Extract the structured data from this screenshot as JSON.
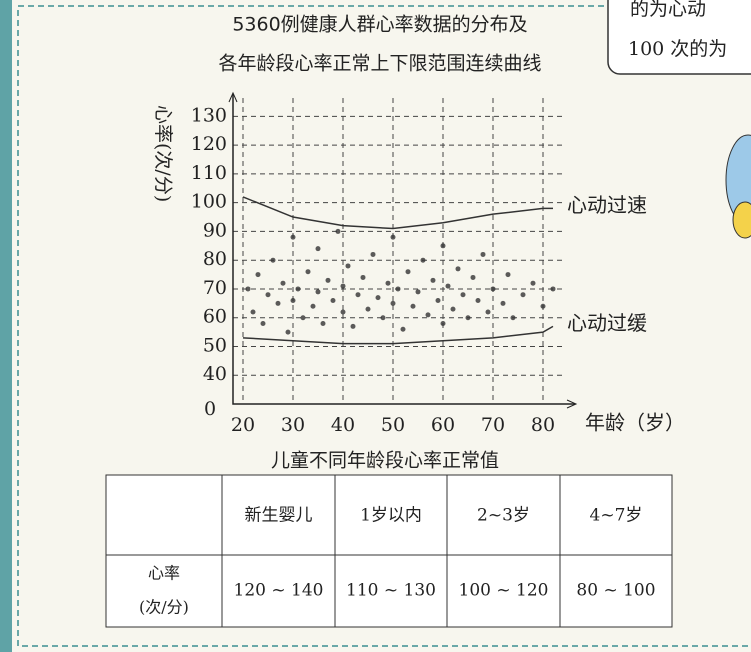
{
  "chart_data": {
    "type": "scatter",
    "title": "5360例健康人群心率数据的分布及",
    "subtitle": "各年龄段心率正常上下限范围连续曲线",
    "y_label": "心率(次/分)",
    "x_label": "年龄（岁）",
    "origin_label": "0",
    "xlim": [
      18,
      86
    ],
    "ylim": [
      30,
      135
    ],
    "xticks": [
      20,
      30,
      40,
      50,
      60,
      70,
      80
    ],
    "yticks": [
      40,
      50,
      60,
      70,
      80,
      90,
      100,
      110,
      120,
      130
    ],
    "grid": true,
    "series": [
      {
        "kind": "points",
        "color": "#333333",
        "x": [
          21,
          22,
          23,
          24,
          25,
          26,
          27,
          28,
          29,
          30,
          30,
          31,
          32,
          33,
          34,
          35,
          35,
          36,
          37,
          38,
          39,
          40,
          40,
          41,
          42,
          43,
          44,
          45,
          46,
          47,
          48,
          49,
          50,
          50,
          51,
          52,
          53,
          54,
          55,
          56,
          57,
          58,
          59,
          60,
          60,
          61,
          62,
          63,
          64,
          65,
          66,
          67,
          68,
          69,
          70,
          72,
          73,
          74,
          76,
          78,
          80,
          82
        ],
        "values": [
          70,
          62,
          75,
          58,
          68,
          80,
          65,
          72,
          55,
          88,
          66,
          70,
          60,
          76,
          64,
          84,
          69,
          58,
          73,
          66,
          90,
          62,
          71,
          78,
          57,
          68,
          74,
          63,
          82,
          67,
          60,
          72,
          88,
          65,
          70,
          56,
          76,
          64,
          69,
          80,
          61,
          73,
          66,
          58,
          85,
          71,
          63,
          77,
          68,
          60,
          74,
          66,
          82,
          62,
          70,
          65,
          75,
          60,
          68,
          72,
          64,
          70
        ]
      },
      {
        "kind": "line",
        "name": "心动过速",
        "color": "#333333",
        "x": [
          20,
          30,
          40,
          50,
          60,
          70,
          80,
          82
        ],
        "values": [
          102,
          95,
          92,
          91,
          93,
          96,
          98,
          98
        ]
      },
      {
        "kind": "line",
        "name": "心动过缓",
        "color": "#333333",
        "x": [
          20,
          30,
          40,
          50,
          60,
          70,
          80,
          82
        ],
        "values": [
          53,
          52,
          51,
          51,
          52,
          53,
          55,
          57
        ]
      }
    ]
  },
  "table": {
    "title": "儿童不同年龄段心率正常值",
    "header": [
      "新生婴儿",
      "1岁以内",
      "2~3岁",
      "4~7岁"
    ],
    "row_label": [
      "心率",
      "(次/分)"
    ],
    "values": [
      "120 ~ 140",
      "110 ~ 130",
      "100 ~ 120",
      "80 ~ 100"
    ]
  },
  "bubble_lines": [
    "的为心动",
    "100 次的为"
  ]
}
